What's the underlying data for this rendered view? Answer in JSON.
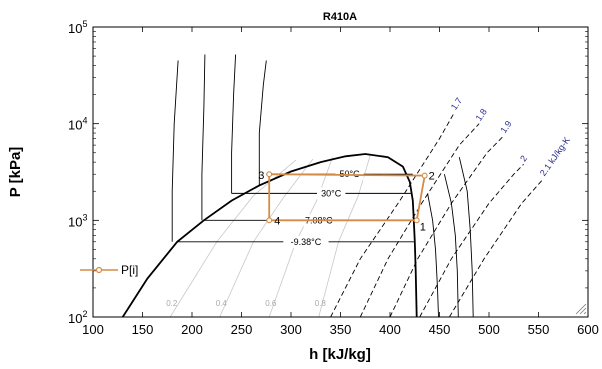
{
  "chart_data": {
    "type": "line",
    "title": "R410A",
    "xlabel": "h [kJ/kg]",
    "ylabel": "P [kPa]",
    "xlim": [
      100,
      600
    ],
    "ylim": [
      100,
      100000
    ],
    "yscale": "log",
    "grid": false,
    "x_ticks": [
      "100",
      "150",
      "200",
      "250",
      "300",
      "350",
      "400",
      "450",
      "500",
      "550",
      "600"
    ],
    "y_ticks": [
      {
        "value": 100,
        "base": "10",
        "exp": "2"
      },
      {
        "value": 1000,
        "base": "10",
        "exp": "3"
      },
      {
        "value": 10000,
        "base": "10",
        "exp": "4"
      },
      {
        "value": 100000,
        "base": "10",
        "exp": "5"
      }
    ],
    "saturation_dome": {
      "liquid": [
        [
          130,
          100
        ],
        [
          155,
          250
        ],
        [
          185,
          600
        ],
        [
          212,
          1000
        ],
        [
          240,
          1600
        ],
        [
          268,
          2300
        ],
        [
          300,
          3200
        ],
        [
          330,
          4000
        ],
        [
          355,
          4600
        ],
        [
          375,
          4850
        ]
      ],
      "vapor": [
        [
          375,
          4850
        ],
        [
          398,
          4500
        ],
        [
          413,
          3600
        ],
        [
          420,
          2500
        ],
        [
          423,
          1600
        ],
        [
          424,
          1000
        ],
        [
          425,
          600
        ],
        [
          426,
          300
        ],
        [
          427,
          100
        ]
      ]
    },
    "isotherms": [
      {
        "label": "50°C",
        "points": [
          [
            275,
            3000
          ],
          [
            423,
            3000
          ]
        ]
      },
      {
        "label": "30°C",
        "points": [
          [
            240,
            1900
          ],
          [
            421,
            1900
          ]
        ]
      },
      {
        "label": "7.08°C",
        "points": [
          [
            212,
            1000
          ],
          [
            424,
            1000
          ]
        ]
      },
      {
        "label": "-9.38°C",
        "points": [
          [
            185,
            600
          ],
          [
            425,
            600
          ]
        ]
      }
    ],
    "isotherm_extensions": [
      [
        [
          180,
          600
        ],
        [
          180,
          2000
        ],
        [
          182,
          10000
        ],
        [
          186,
          45000
        ]
      ],
      [
        [
          210,
          1000
        ],
        [
          210,
          3000
        ],
        [
          212,
          15000
        ],
        [
          213,
          52000
        ]
      ],
      [
        [
          240,
          1900
        ],
        [
          240,
          5000
        ],
        [
          242,
          20000
        ],
        [
          244,
          52000
        ]
      ],
      [
        [
          268,
          2300
        ],
        [
          268,
          8000
        ],
        [
          272,
          25000
        ],
        [
          275,
          45000
        ]
      ]
    ],
    "vapor_isotherms": [
      [
        [
          438,
          1900
        ],
        [
          443,
          1000
        ],
        [
          446,
          500
        ],
        [
          448,
          200
        ],
        [
          449,
          100
        ]
      ],
      [
        [
          455,
          3000
        ],
        [
          462,
          1500
        ],
        [
          466,
          700
        ],
        [
          468,
          300
        ],
        [
          469,
          100
        ]
      ],
      [
        [
          470,
          4500
        ],
        [
          478,
          2000
        ],
        [
          481,
          800
        ],
        [
          483,
          300
        ],
        [
          484,
          100
        ]
      ]
    ],
    "quality_lines": [
      {
        "label": "0.2",
        "points": [
          [
            178,
            100
          ],
          [
            225,
            600
          ],
          [
            262,
            1800
          ],
          [
            305,
            4200
          ]
        ]
      },
      {
        "label": "0.4",
        "points": [
          [
            228,
            100
          ],
          [
            262,
            600
          ],
          [
            292,
            1700
          ],
          [
            322,
            4300
          ]
        ]
      },
      {
        "label": "0.6",
        "points": [
          [
            278,
            100
          ],
          [
            305,
            600
          ],
          [
            326,
            1600
          ],
          [
            342,
            4500
          ]
        ]
      },
      {
        "label": "0.8",
        "points": [
          [
            328,
            100
          ],
          [
            348,
            600
          ],
          [
            368,
            1800
          ],
          [
            380,
            4700
          ]
        ]
      }
    ],
    "isentropes": [
      {
        "label": "1.7",
        "points": [
          [
            340,
            100
          ],
          [
            370,
            400
          ],
          [
            410,
            1600
          ],
          [
            450,
            7000
          ],
          [
            465,
            13000
          ]
        ]
      },
      {
        "label": "1.8",
        "points": [
          [
            370,
            100
          ],
          [
            398,
            400
          ],
          [
            432,
            1500
          ],
          [
            470,
            6000
          ],
          [
            490,
            10000
          ]
        ]
      },
      {
        "label": "1.9",
        "points": [
          [
            400,
            100
          ],
          [
            428,
            400
          ],
          [
            462,
            1500
          ],
          [
            498,
            5000
          ],
          [
            515,
            7500
          ]
        ]
      },
      {
        "label": "2",
        "points": [
          [
            430,
            100
          ],
          [
            462,
            400
          ],
          [
            500,
            1500
          ],
          [
            525,
            3000
          ],
          [
            535,
            3800
          ]
        ]
      },
      {
        "label": "2.1 kJ/kg-K",
        "points": [
          [
            460,
            100
          ],
          [
            495,
            400
          ],
          [
            533,
            1500
          ],
          [
            555,
            2700
          ]
        ]
      }
    ],
    "cycle": {
      "name": "P[i]",
      "points": [
        {
          "label": "1",
          "h": 427,
          "p": 1000
        },
        {
          "label": "2",
          "h": 435,
          "p": 2900
        },
        {
          "label": "3",
          "h": 278,
          "p": 3000
        },
        {
          "label": "4",
          "h": 278,
          "p": 1000
        }
      ]
    },
    "legend": {
      "position": "left",
      "entry": "P[i]"
    }
  }
}
